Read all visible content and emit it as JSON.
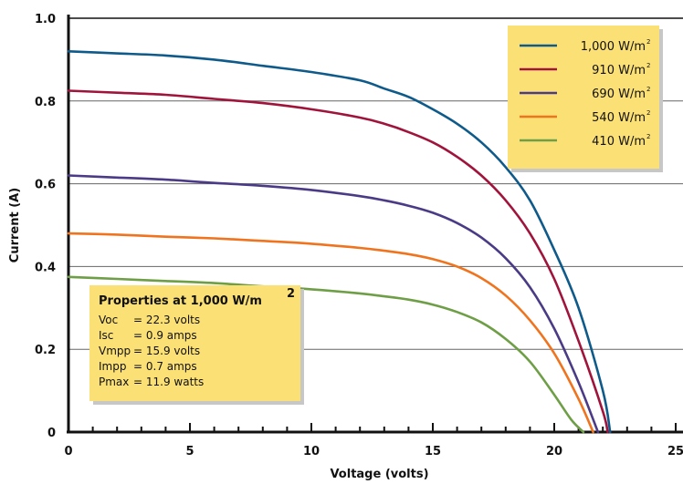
{
  "chart_data": {
    "type": "line",
    "title": "",
    "xlabel": "Voltage (volts)",
    "ylabel": "Current (A)",
    "xlim": [
      0,
      25
    ],
    "ylim": [
      0,
      1.0
    ],
    "x_ticks": [
      "0",
      "5",
      "10",
      "15",
      "20",
      "25"
    ],
    "y_ticks": [
      "0",
      "0.2",
      "0.4",
      "0.6",
      "0.8",
      "1.0"
    ],
    "grid": "horizontal",
    "legend_position": "top-right",
    "series": [
      {
        "name": "1,000 W/m",
        "superscript": "2",
        "color": "#0e5a8a",
        "x": [
          0,
          2,
          4,
          6,
          8,
          10,
          12,
          13,
          14,
          15,
          16,
          17,
          18,
          19,
          20,
          21,
          22,
          22.3
        ],
        "y": [
          0.92,
          0.915,
          0.91,
          0.9,
          0.885,
          0.87,
          0.85,
          0.83,
          0.81,
          0.78,
          0.745,
          0.7,
          0.64,
          0.56,
          0.44,
          0.3,
          0.1,
          0
        ]
      },
      {
        "name": "910 W/m",
        "superscript": "2",
        "color": "#a0143c",
        "x": [
          0,
          2,
          4,
          6,
          8,
          10,
          12,
          13,
          14,
          15,
          16,
          17,
          18,
          19,
          20,
          21,
          22,
          22.2
        ],
        "y": [
          0.825,
          0.82,
          0.815,
          0.805,
          0.795,
          0.78,
          0.76,
          0.745,
          0.725,
          0.7,
          0.665,
          0.62,
          0.56,
          0.48,
          0.37,
          0.22,
          0.05,
          0
        ]
      },
      {
        "name": "690 W/m",
        "superscript": "2",
        "color": "#4b3b86",
        "x": [
          0,
          2,
          4,
          6,
          8,
          10,
          12,
          13,
          14,
          15,
          16,
          17,
          18,
          19,
          20,
          21,
          21.8
        ],
        "y": [
          0.62,
          0.615,
          0.61,
          0.602,
          0.595,
          0.585,
          0.57,
          0.56,
          0.547,
          0.53,
          0.505,
          0.47,
          0.42,
          0.35,
          0.25,
          0.12,
          0
        ]
      },
      {
        "name": "540 W/m",
        "superscript": "2",
        "color": "#f0731e",
        "x": [
          0,
          2,
          4,
          6,
          8,
          10,
          12,
          13,
          14,
          15,
          16,
          17,
          18,
          19,
          20,
          21,
          21.6
        ],
        "y": [
          0.48,
          0.477,
          0.472,
          0.468,
          0.462,
          0.455,
          0.445,
          0.438,
          0.43,
          0.418,
          0.4,
          0.372,
          0.33,
          0.27,
          0.19,
          0.08,
          0
        ]
      },
      {
        "name": "410 W/m",
        "superscript": "2",
        "color": "#6e9e46",
        "x": [
          0,
          2,
          4,
          6,
          8,
          10,
          12,
          13,
          14,
          15,
          16,
          17,
          18,
          19,
          20,
          20.7,
          21.2
        ],
        "y": [
          0.375,
          0.37,
          0.365,
          0.36,
          0.352,
          0.345,
          0.335,
          0.328,
          0.32,
          0.308,
          0.29,
          0.265,
          0.225,
          0.17,
          0.09,
          0.03,
          0
        ]
      }
    ],
    "annotation": {
      "title": "Properties at 1,000 W/m",
      "title_superscript": "2",
      "lines": [
        "Voc    = 22.3 volts",
        "Isc     = 0.9 amps",
        "Vmpp = 15.9 volts",
        "Impp  = 0.7 amps",
        "Pmax = 11.9 watts"
      ]
    },
    "colors": {
      "box_fill": "#fbe076",
      "grid": "#666666",
      "axis": "#111111"
    }
  }
}
